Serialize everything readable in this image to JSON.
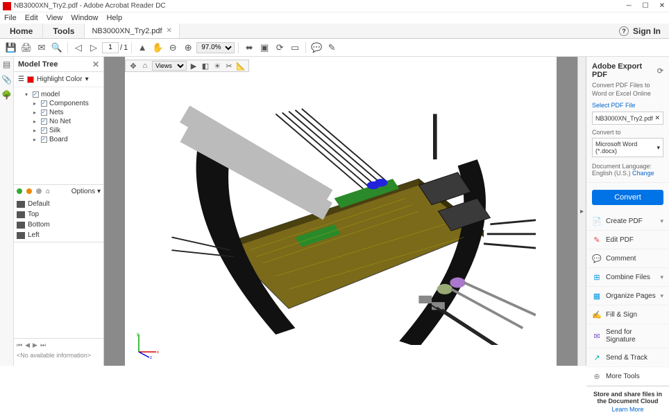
{
  "title": "NB3000XN_Try2.pdf - Adobe Acrobat Reader DC",
  "menu": [
    "File",
    "Edit",
    "View",
    "Window",
    "Help"
  ],
  "tabs": {
    "home": "Home",
    "tools": "Tools"
  },
  "doc_tab": {
    "name": "NB3000XN_Try2.pdf"
  },
  "sign_in": "Sign In",
  "page": {
    "current": "1",
    "total": "1"
  },
  "zoom": "97.0%",
  "model_tree": {
    "title": "Model Tree",
    "highlight_label": "Highlight Color",
    "root": "model",
    "children": [
      "Components",
      "Nets",
      "No Net",
      "Silk",
      "Board"
    ],
    "options": "Options",
    "views": [
      "Default",
      "Top",
      "Bottom",
      "Left"
    ],
    "no_info": "<No available information>"
  },
  "mini_toolbar": {
    "views_label": "Views"
  },
  "export": {
    "title": "Adobe Export PDF",
    "subtitle": "Convert PDF Files to Word or Excel Online",
    "select_label": "Select PDF File",
    "filename": "NB3000XN_Try2.pdf",
    "convert_to": "Convert to",
    "format": "Microsoft Word (*.docx)",
    "doc_lang_label": "Document Language:",
    "doc_lang": "English (U.S.)",
    "change": "Change",
    "convert_btn": "Convert"
  },
  "tools": [
    {
      "label": "Create PDF",
      "color": "#e8443a",
      "icon": "📄",
      "chev": true
    },
    {
      "label": "Edit PDF",
      "color": "#e8443a",
      "icon": "✎",
      "chev": false
    },
    {
      "label": "Comment",
      "color": "#f5a623",
      "icon": "💬",
      "chev": false
    },
    {
      "label": "Combine Files",
      "color": "#0099e5",
      "icon": "⊞",
      "chev": true
    },
    {
      "label": "Organize Pages",
      "color": "#0099e5",
      "icon": "▦",
      "chev": true
    },
    {
      "label": "Fill & Sign",
      "color": "#7b4fc9",
      "icon": "✍",
      "chev": false
    },
    {
      "label": "Send for Signature",
      "color": "#7b4fc9",
      "icon": "✉",
      "chev": false
    },
    {
      "label": "Send & Track",
      "color": "#00b8a9",
      "icon": "↗",
      "chev": false
    },
    {
      "label": "More Tools",
      "color": "#888",
      "icon": "⊕",
      "chev": false
    }
  ],
  "share": {
    "title": "Store and share files in the Document Cloud",
    "learn": "Learn More"
  }
}
